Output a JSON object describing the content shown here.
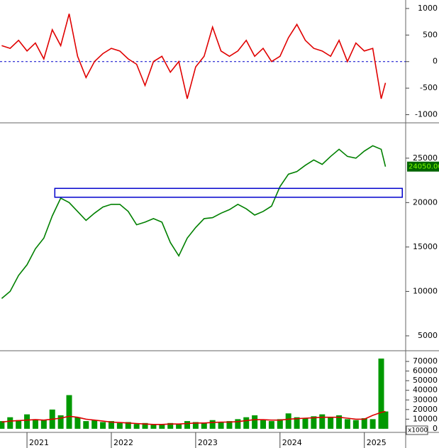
{
  "chart_data": [
    {
      "type": "line",
      "color": "#e00000",
      "hline": 0,
      "x": [
        2020.7,
        2020.8,
        2020.9,
        2021.0,
        2021.1,
        2021.2,
        2021.3,
        2021.4,
        2021.5,
        2021.6,
        2021.7,
        2021.8,
        2021.9,
        2022.0,
        2022.1,
        2022.2,
        2022.3,
        2022.4,
        2022.5,
        2022.6,
        2022.7,
        2022.8,
        2022.9,
        2023.0,
        2023.1,
        2023.2,
        2023.3,
        2023.4,
        2023.5,
        2023.6,
        2023.7,
        2023.8,
        2023.9,
        2024.0,
        2024.1,
        2024.2,
        2024.3,
        2024.4,
        2024.5,
        2024.6,
        2024.7,
        2024.8,
        2024.9,
        2025.0,
        2025.1,
        2025.2,
        2025.25
      ],
      "values": [
        300,
        250,
        400,
        200,
        350,
        50,
        600,
        300,
        900,
        100,
        -300,
        0,
        150,
        250,
        200,
        50,
        -50,
        -450,
        0,
        100,
        -200,
        0,
        -700,
        -100,
        100,
        650,
        200,
        100,
        200,
        400,
        100,
        250,
        0,
        100,
        450,
        700,
        400,
        250,
        200,
        100,
        400,
        0,
        350,
        200,
        250,
        -700,
        -400
      ],
      "xlim": [
        2020.68,
        2025.49
      ],
      "ylim": [
        -1140,
        1160
      ],
      "yticks": [
        1000,
        500,
        0,
        -500,
        -1000
      ]
    },
    {
      "type": "line",
      "color": "#008000",
      "x": [
        2020.7,
        2020.8,
        2020.9,
        2021.0,
        2021.1,
        2021.2,
        2021.3,
        2021.4,
        2021.5,
        2021.6,
        2021.7,
        2021.8,
        2021.9,
        2022.0,
        2022.1,
        2022.2,
        2022.3,
        2022.4,
        2022.5,
        2022.6,
        2022.7,
        2022.8,
        2022.9,
        2023.0,
        2023.1,
        2023.2,
        2023.3,
        2023.4,
        2023.5,
        2023.6,
        2023.7,
        2023.8,
        2023.9,
        2024.0,
        2024.1,
        2024.2,
        2024.3,
        2024.4,
        2024.5,
        2024.6,
        2024.7,
        2024.8,
        2024.9,
        2025.0,
        2025.1,
        2025.2,
        2025.25
      ],
      "values": [
        9200,
        10000,
        11800,
        13000,
        14800,
        16000,
        18500,
        20500,
        20000,
        19000,
        18000,
        18800,
        19500,
        19800,
        19800,
        19000,
        17500,
        17800,
        18200,
        17800,
        15500,
        14000,
        16000,
        17200,
        18200,
        18300,
        18800,
        19200,
        19800,
        19300,
        18600,
        19000,
        19600,
        21800,
        23200,
        23500,
        24200,
        24800,
        24300,
        25200,
        26000,
        25200,
        25000,
        25800,
        26400,
        26000,
        24050
      ],
      "last_value": 24050,
      "last_label": "24050.00",
      "zone": {
        "x": [
          2021.33,
          2025.45
        ],
        "y": [
          20600,
          21600
        ],
        "color": "#0000cc"
      },
      "xlim": [
        2020.68,
        2025.49
      ],
      "ylim": [
        3400,
        28900
      ],
      "yticks": [
        25000,
        20000,
        15000,
        10000,
        5000
      ]
    },
    {
      "type": "bar",
      "unit_label": "x1000",
      "x": [
        2020.7,
        2020.8,
        2020.9,
        2021.0,
        2021.1,
        2021.2,
        2021.3,
        2021.4,
        2021.5,
        2021.6,
        2021.7,
        2021.8,
        2021.9,
        2022.0,
        2022.1,
        2022.2,
        2022.3,
        2022.4,
        2022.5,
        2022.6,
        2022.7,
        2022.8,
        2022.9,
        2023.0,
        2023.1,
        2023.2,
        2023.3,
        2023.4,
        2023.5,
        2023.6,
        2023.7,
        2023.8,
        2023.9,
        2024.0,
        2024.1,
        2024.2,
        2024.3,
        2024.4,
        2024.5,
        2024.6,
        2024.7,
        2024.8,
        2024.9,
        2025.0,
        2025.1,
        2025.2,
        2025.25
      ],
      "series": [
        {
          "type": "bar",
          "color": "#009900",
          "values": [
            8000,
            12000,
            9000,
            15000,
            10000,
            9000,
            20000,
            14000,
            35000,
            12000,
            8000,
            9000,
            7000,
            8000,
            6000,
            7000,
            5000,
            6000,
            4000,
            5000,
            6000,
            5000,
            8000,
            7000,
            6000,
            9000,
            7000,
            8000,
            10000,
            12000,
            14000,
            9000,
            8000,
            10000,
            16000,
            12000,
            11000,
            13000,
            15000,
            12000,
            14000,
            10000,
            9000,
            11000,
            10000,
            73000,
            18000
          ]
        },
        {
          "type": "line",
          "color": "#dd0000",
          "values": [
            7000,
            8000,
            8500,
            9000,
            9500,
            9000,
            10000,
            11000,
            13000,
            12000,
            10000,
            9000,
            8000,
            7000,
            6500,
            6000,
            5500,
            5000,
            4500,
            4500,
            5000,
            5000,
            5500,
            6000,
            6000,
            6500,
            7000,
            7000,
            7500,
            8500,
            9500,
            9500,
            9000,
            9000,
            10000,
            10500,
            11000,
            11500,
            12000,
            12000,
            12000,
            11000,
            10000,
            10000,
            14000,
            17000,
            18000
          ]
        }
      ],
      "xlim": [
        2020.68,
        2025.49
      ],
      "ylim": [
        -3000,
        80400
      ],
      "yticks": [
        70000,
        60000,
        50000,
        40000,
        30000,
        20000,
        10000,
        0
      ],
      "xticks": [
        2021,
        2022,
        2023,
        2024,
        2025
      ]
    }
  ]
}
